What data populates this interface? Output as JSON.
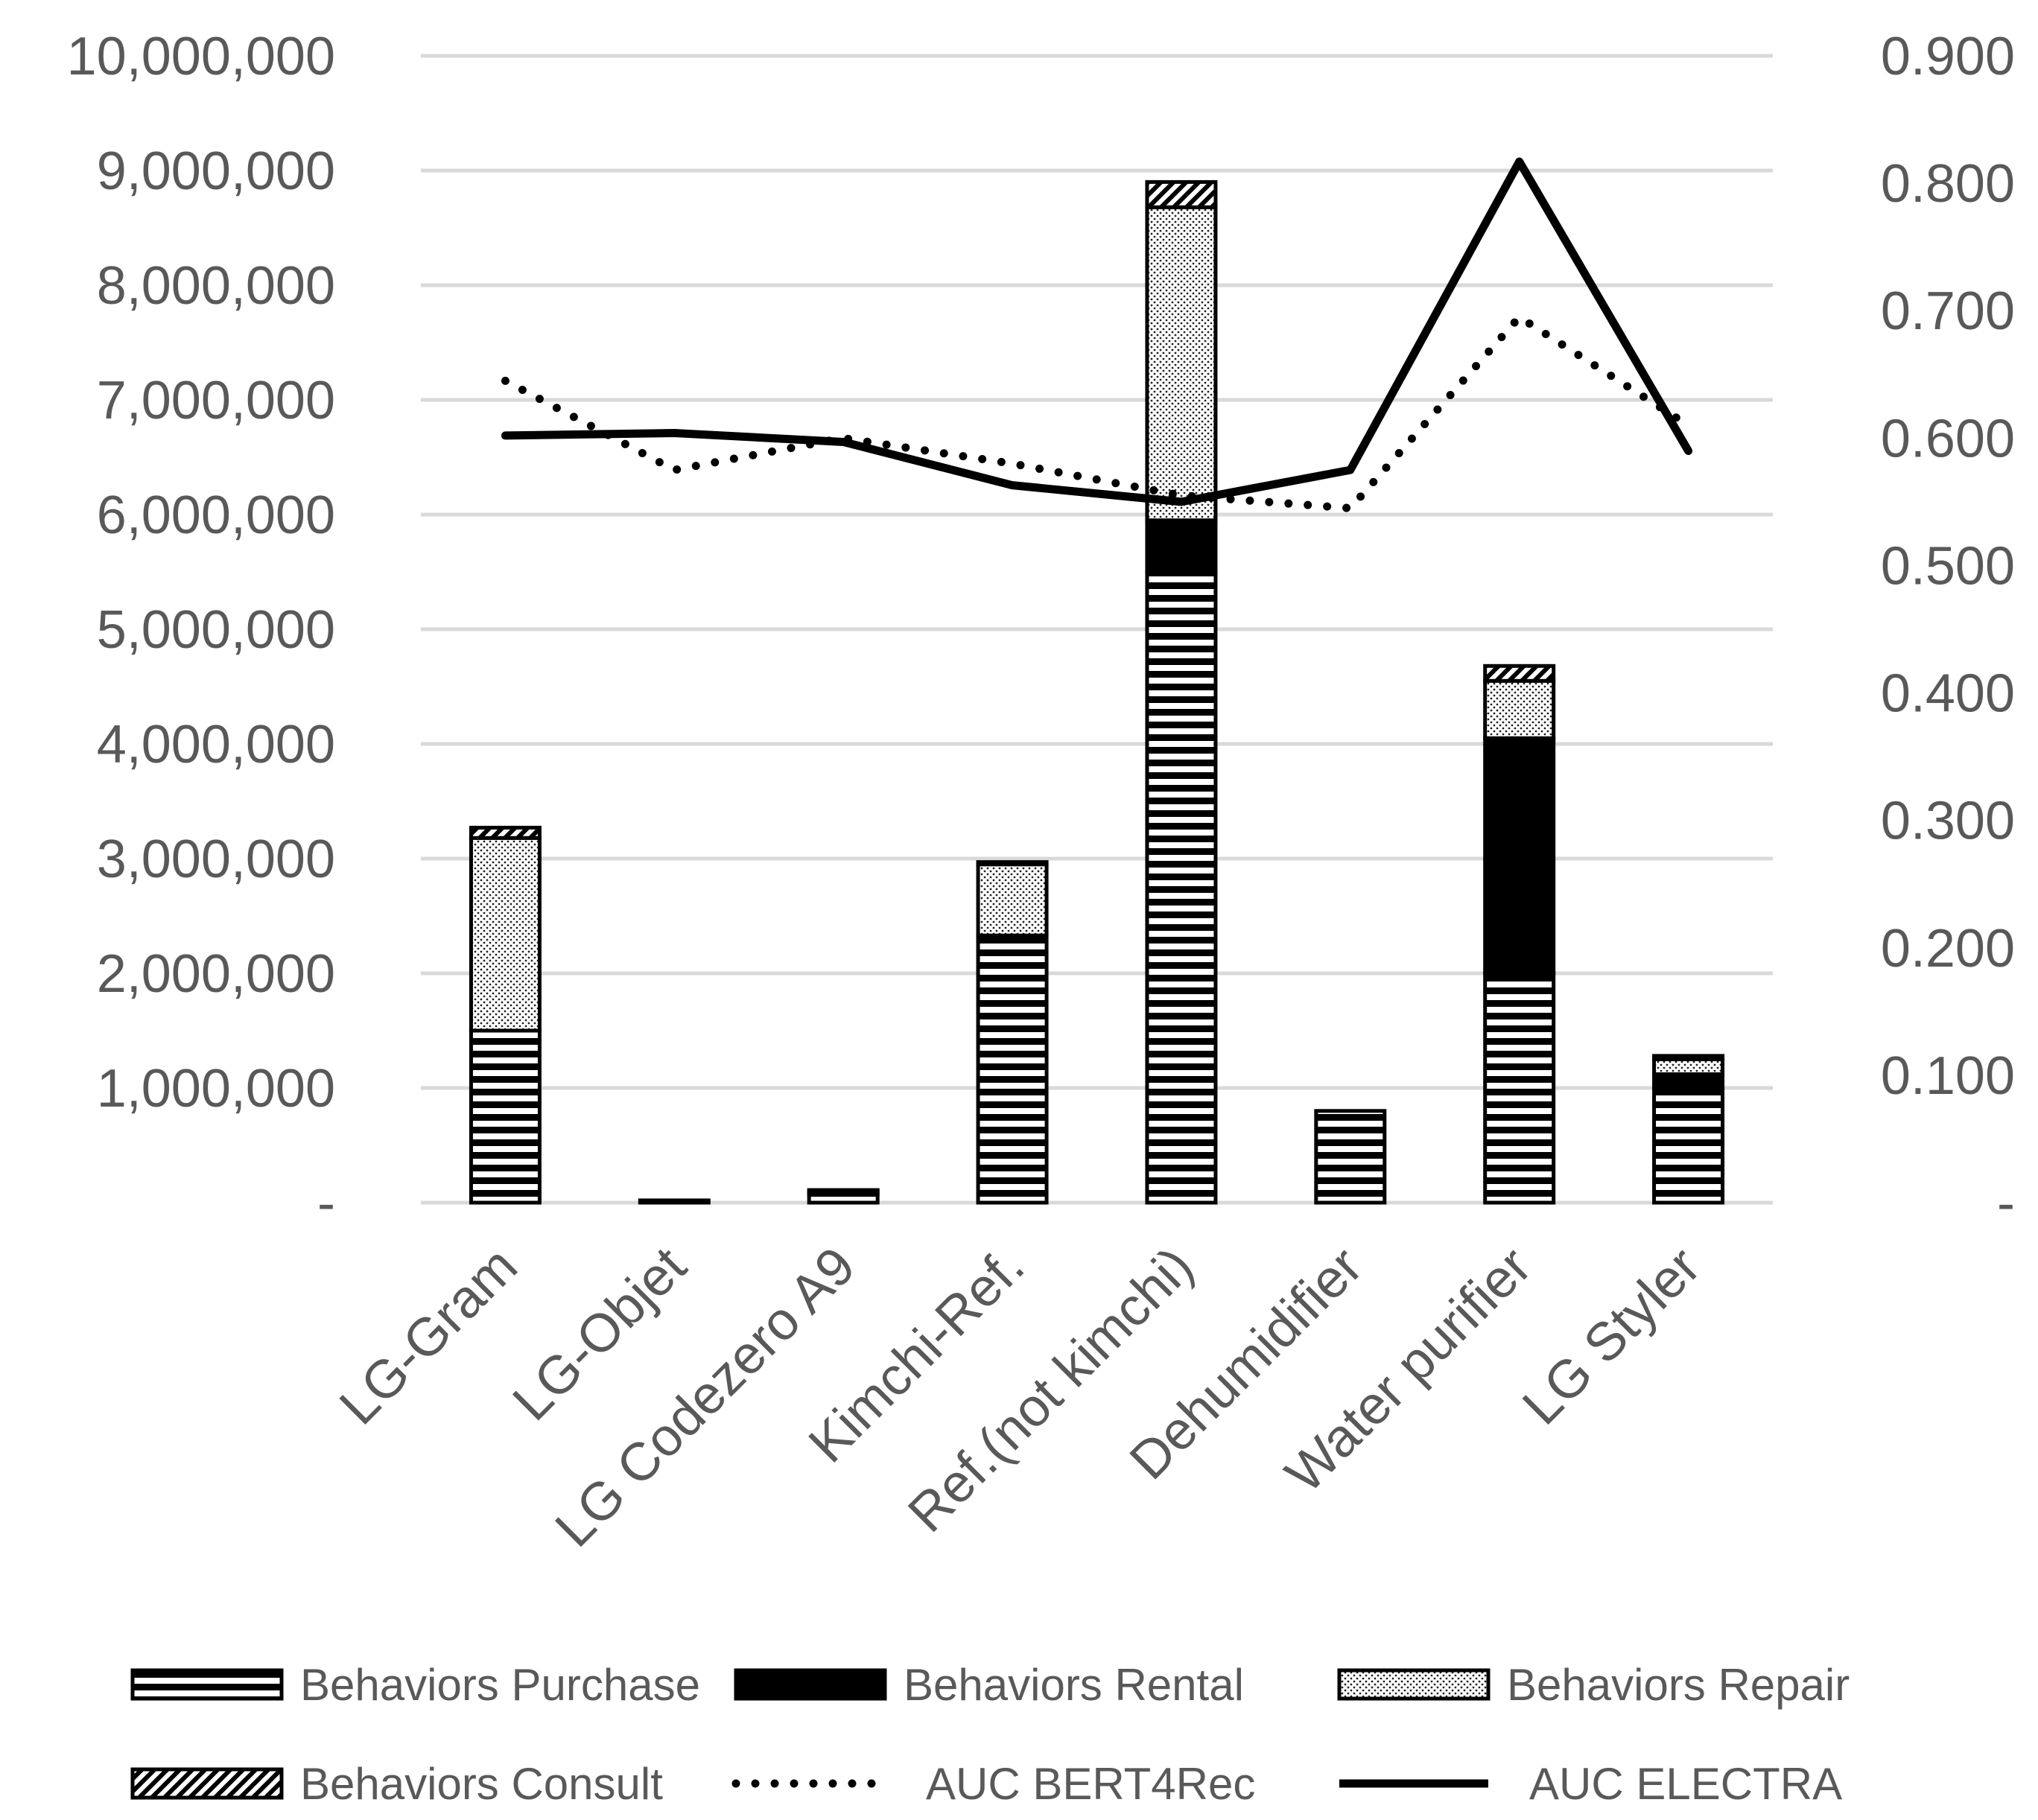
{
  "chart_data": {
    "type": "bar",
    "stacked": true,
    "categories": [
      "LG-Gram",
      "LG-Objet",
      "LG Codezero A9",
      "Kimchi-Ref.",
      "Ref.(not kimchi)",
      "Dehumidifier",
      "Water purifier",
      "LG Styler"
    ],
    "series": [
      {
        "name": "Behaviors Purchase",
        "axis": "left",
        "pattern": "hstripe",
        "values": [
          1500000,
          20000,
          70000,
          2330000,
          5500000,
          800000,
          2000000,
          1000000
        ]
      },
      {
        "name": "Behaviors Rental",
        "axis": "left",
        "pattern": "solid",
        "values": [
          0,
          0,
          0,
          0,
          450000,
          0,
          2050000,
          120000
        ]
      },
      {
        "name": "Behaviors Repair",
        "axis": "left",
        "pattern": "dots",
        "values": [
          1680000,
          0,
          30000,
          620000,
          2730000,
          0,
          500000,
          130000
        ]
      },
      {
        "name": "Behaviors Consult",
        "axis": "left",
        "pattern": "diag",
        "values": [
          90000,
          0,
          10000,
          20000,
          220000,
          0,
          130000,
          30000
        ]
      },
      {
        "name": "AUC BERT4Rec",
        "axis": "right",
        "type": "line",
        "style": "dotted",
        "values": [
          0.645,
          0.575,
          0.6,
          0.58,
          0.555,
          0.545,
          0.695,
          0.61
        ]
      },
      {
        "name": "AUC ELECTRA",
        "axis": "right",
        "type": "line",
        "style": "solid",
        "values": [
          0.602,
          0.604,
          0.597,
          0.563,
          0.55,
          0.575,
          0.817,
          0.59
        ]
      }
    ],
    "y_left": {
      "min": 0,
      "max": 10000000,
      "ticks": [
        "-",
        "1,000,000",
        "2,000,000",
        "3,000,000",
        "4,000,000",
        "5,000,000",
        "6,000,000",
        "7,000,000",
        "8,000,000",
        "9,000,000",
        "10,000,000"
      ]
    },
    "y_right": {
      "min": 0,
      "max": 0.9,
      "ticks": [
        "-",
        "0.100",
        "0.200",
        "0.300",
        "0.400",
        "0.500",
        "0.600",
        "0.700",
        "0.800",
        "0.900"
      ]
    },
    "gridlines": true,
    "legend_position": "bottom",
    "title": "",
    "xlabel": "",
    "ylabel": ""
  }
}
